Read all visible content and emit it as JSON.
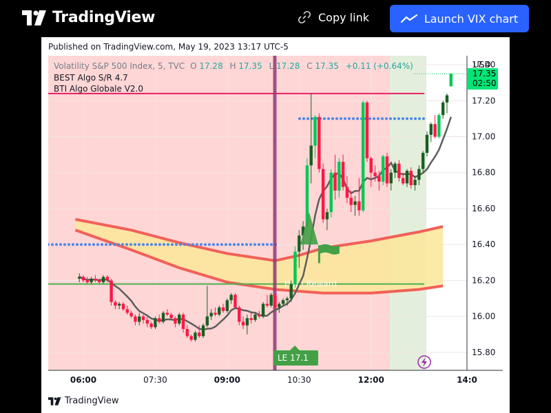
{
  "header": {
    "brand": "TradingView",
    "copy_link_label": "Copy link",
    "launch_label": "Launch VIX chart",
    "accent": "#2962ff"
  },
  "card": {
    "published": "Published on TradingView.com, May 19, 2023 13:17 UTC-5",
    "footer_brand": "TradingView"
  },
  "legend": {
    "symbol": "Volatility S&P 500 Index, 5, TVC",
    "o_label": "O",
    "o_value": "17.28",
    "h_label": "H",
    "h_value": "17.35",
    "l_label": "L",
    "l_value": "17.28",
    "c_label": "C",
    "c_value": "17.35",
    "change": "+0.11 (+0.64%)",
    "indicator_1": "BEST Algo S/R 4.7",
    "indicator_2": "BTI Algo Globale V2.0"
  },
  "price_axis": {
    "currency": "USD",
    "last_price": "17.35",
    "countdown": "02:50"
  },
  "markers": {
    "entry_label": "LE 17.1",
    "zone_label": "High Reward"
  },
  "colors": {
    "up": "#00c853",
    "down": "#ff1744",
    "up_dark": "#1b5e20",
    "bg_red": "#ffd6d6",
    "bg_green": "#e3efdc",
    "support": "#4caf50",
    "resistance": "#e91e63",
    "dots": "#4a86e8",
    "session_line": "#8e3a74",
    "ma": "#5d5d5d",
    "band": "#f16058",
    "band_fill": "#fbe69a"
  },
  "chart_data": {
    "type": "candlestick",
    "symbol": "Volatility S&P 500 Index",
    "interval": "5",
    "x_tick_labels": [
      "06:00",
      "07:30",
      "09:00",
      "10:30",
      "12:00",
      "14:0"
    ],
    "y_tick_labels": [
      "15.80",
      "16.00",
      "16.20",
      "16.40",
      "16.60",
      "16.80",
      "17.00",
      "17.20",
      "17.40"
    ],
    "ylim": [
      15.7,
      17.45
    ],
    "last_price": 17.35,
    "levels": {
      "resistance": 17.24,
      "support": 16.18,
      "dotted_lower": 16.4,
      "dotted_upper": 17.1
    },
    "candles": [
      {
        "o": 16.21,
        "h": 16.24,
        "l": 16.19,
        "c": 16.22
      },
      {
        "o": 16.22,
        "h": 16.23,
        "l": 16.19,
        "c": 16.2
      },
      {
        "o": 16.2,
        "h": 16.22,
        "l": 16.18,
        "c": 16.19
      },
      {
        "o": 16.19,
        "h": 16.22,
        "l": 16.18,
        "c": 16.21
      },
      {
        "o": 16.21,
        "h": 16.23,
        "l": 16.19,
        "c": 16.2
      },
      {
        "o": 16.2,
        "h": 16.21,
        "l": 16.18,
        "c": 16.19
      },
      {
        "o": 16.19,
        "h": 16.23,
        "l": 16.18,
        "c": 16.22
      },
      {
        "o": 16.22,
        "h": 16.23,
        "l": 16.19,
        "c": 16.2
      },
      {
        "o": 16.2,
        "h": 16.21,
        "l": 16.06,
        "c": 16.08
      },
      {
        "o": 16.08,
        "h": 16.09,
        "l": 16.04,
        "c": 16.06
      },
      {
        "o": 16.06,
        "h": 16.08,
        "l": 16.04,
        "c": 16.07
      },
      {
        "o": 16.07,
        "h": 16.08,
        "l": 16.03,
        "c": 16.04
      },
      {
        "o": 16.04,
        "h": 16.06,
        "l": 16.01,
        "c": 16.02
      },
      {
        "o": 16.02,
        "h": 16.03,
        "l": 15.99,
        "c": 16.0
      },
      {
        "o": 16.0,
        "h": 16.01,
        "l": 15.95,
        "c": 15.97
      },
      {
        "o": 15.97,
        "h": 16.02,
        "l": 15.95,
        "c": 16.0
      },
      {
        "o": 16.0,
        "h": 16.01,
        "l": 15.96,
        "c": 15.98
      },
      {
        "o": 15.98,
        "h": 16.0,
        "l": 15.94,
        "c": 15.96
      },
      {
        "o": 15.96,
        "h": 15.97,
        "l": 15.93,
        "c": 15.94
      },
      {
        "o": 15.94,
        "h": 16.0,
        "l": 15.93,
        "c": 15.99
      },
      {
        "o": 15.99,
        "h": 16.01,
        "l": 15.96,
        "c": 15.97
      },
      {
        "o": 15.97,
        "h": 16.03,
        "l": 15.96,
        "c": 16.02
      },
      {
        "o": 16.02,
        "h": 16.04,
        "l": 16.0,
        "c": 16.01
      },
      {
        "o": 16.01,
        "h": 16.02,
        "l": 15.98,
        "c": 15.99
      },
      {
        "o": 15.99,
        "h": 16.0,
        "l": 15.94,
        "c": 15.96
      },
      {
        "o": 15.96,
        "h": 16.02,
        "l": 15.95,
        "c": 16.01
      },
      {
        "o": 16.01,
        "h": 16.02,
        "l": 15.91,
        "c": 15.93
      },
      {
        "o": 15.93,
        "h": 15.95,
        "l": 15.88,
        "c": 15.89
      },
      {
        "o": 15.89,
        "h": 15.9,
        "l": 15.86,
        "c": 15.87
      },
      {
        "o": 15.87,
        "h": 15.92,
        "l": 15.86,
        "c": 15.91
      },
      {
        "o": 15.91,
        "h": 15.95,
        "l": 15.88,
        "c": 15.89
      },
      {
        "o": 15.89,
        "h": 15.96,
        "l": 15.88,
        "c": 15.95
      },
      {
        "o": 15.95,
        "h": 16.17,
        "l": 15.94,
        "c": 16.0
      },
      {
        "o": 16.0,
        "h": 16.04,
        "l": 15.98,
        "c": 16.02
      },
      {
        "o": 16.02,
        "h": 16.05,
        "l": 16.0,
        "c": 16.01
      },
      {
        "o": 16.01,
        "h": 16.06,
        "l": 16.0,
        "c": 16.05
      },
      {
        "o": 16.05,
        "h": 16.07,
        "l": 16.02,
        "c": 16.03
      },
      {
        "o": 16.03,
        "h": 16.1,
        "l": 16.02,
        "c": 16.09
      },
      {
        "o": 16.09,
        "h": 16.13,
        "l": 16.07,
        "c": 16.12
      },
      {
        "o": 16.12,
        "h": 16.13,
        "l": 16.04,
        "c": 16.05
      },
      {
        "o": 16.05,
        "h": 16.06,
        "l": 15.95,
        "c": 15.97
      },
      {
        "o": 15.97,
        "h": 16.0,
        "l": 15.93,
        "c": 15.95
      },
      {
        "o": 15.95,
        "h": 16.01,
        "l": 15.9,
        "c": 15.99
      },
      {
        "o": 15.99,
        "h": 16.02,
        "l": 15.96,
        "c": 15.98
      },
      {
        "o": 15.98,
        "h": 16.02,
        "l": 15.97,
        "c": 16.01
      },
      {
        "o": 16.01,
        "h": 16.03,
        "l": 15.99,
        "c": 16.0
      },
      {
        "o": 16.0,
        "h": 16.08,
        "l": 15.99,
        "c": 16.07
      },
      {
        "o": 16.07,
        "h": 16.12,
        "l": 16.05,
        "c": 16.06
      },
      {
        "o": 16.06,
        "h": 16.13,
        "l": 16.05,
        "c": 16.12
      },
      {
        "o": 16.12,
        "h": 16.13,
        "l": 16.03,
        "c": 16.05
      },
      {
        "o": 16.05,
        "h": 16.08,
        "l": 16.02,
        "c": 16.07
      },
      {
        "o": 16.07,
        "h": 16.1,
        "l": 16.06,
        "c": 16.09
      },
      {
        "o": 16.09,
        "h": 16.11,
        "l": 16.06,
        "c": 16.1
      },
      {
        "o": 16.1,
        "h": 16.2,
        "l": 16.08,
        "c": 16.18
      },
      {
        "o": 16.18,
        "h": 16.39,
        "l": 16.16,
        "c": 16.36
      },
      {
        "o": 16.36,
        "h": 16.48,
        "l": 16.27,
        "c": 16.45
      },
      {
        "o": 16.45,
        "h": 16.53,
        "l": 16.37,
        "c": 16.5
      },
      {
        "o": 16.5,
        "h": 16.88,
        "l": 16.45,
        "c": 16.84
      },
      {
        "o": 16.84,
        "h": 17.24,
        "l": 16.74,
        "c": 16.95
      },
      {
        "o": 16.95,
        "h": 17.12,
        "l": 16.88,
        "c": 17.11
      },
      {
        "o": 17.11,
        "h": 17.13,
        "l": 16.8,
        "c": 16.82
      },
      {
        "o": 16.82,
        "h": 16.85,
        "l": 16.52,
        "c": 16.54
      },
      {
        "o": 16.54,
        "h": 16.6,
        "l": 16.48,
        "c": 16.58
      },
      {
        "o": 16.58,
        "h": 16.82,
        "l": 16.55,
        "c": 16.8
      },
      {
        "o": 16.8,
        "h": 16.9,
        "l": 16.65,
        "c": 16.7
      },
      {
        "o": 16.7,
        "h": 16.88,
        "l": 16.66,
        "c": 16.86
      },
      {
        "o": 16.86,
        "h": 16.9,
        "l": 16.7,
        "c": 16.72
      },
      {
        "o": 16.72,
        "h": 16.78,
        "l": 16.63,
        "c": 16.66
      },
      {
        "o": 16.66,
        "h": 16.7,
        "l": 16.58,
        "c": 16.62
      },
      {
        "o": 16.62,
        "h": 16.67,
        "l": 16.56,
        "c": 16.64
      },
      {
        "o": 16.64,
        "h": 16.77,
        "l": 16.56,
        "c": 16.59
      },
      {
        "o": 16.59,
        "h": 17.2,
        "l": 16.58,
        "c": 17.19
      },
      {
        "o": 17.19,
        "h": 17.2,
        "l": 16.86,
        "c": 16.88
      },
      {
        "o": 16.88,
        "h": 16.89,
        "l": 16.72,
        "c": 16.8
      },
      {
        "o": 16.8,
        "h": 16.84,
        "l": 16.75,
        "c": 16.78
      },
      {
        "o": 16.78,
        "h": 16.81,
        "l": 16.7,
        "c": 16.75
      },
      {
        "o": 16.75,
        "h": 16.9,
        "l": 16.73,
        "c": 16.89
      },
      {
        "o": 16.89,
        "h": 16.91,
        "l": 16.72,
        "c": 16.74
      },
      {
        "o": 16.74,
        "h": 16.82,
        "l": 16.7,
        "c": 16.8
      },
      {
        "o": 16.8,
        "h": 16.86,
        "l": 16.77,
        "c": 16.85
      },
      {
        "o": 16.85,
        "h": 16.87,
        "l": 16.75,
        "c": 16.77
      },
      {
        "o": 16.77,
        "h": 16.8,
        "l": 16.73,
        "c": 16.74
      },
      {
        "o": 16.74,
        "h": 16.82,
        "l": 16.72,
        "c": 16.81
      },
      {
        "o": 16.81,
        "h": 16.83,
        "l": 16.71,
        "c": 16.73
      },
      {
        "o": 16.73,
        "h": 16.78,
        "l": 16.7,
        "c": 16.76
      },
      {
        "o": 16.76,
        "h": 16.84,
        "l": 16.73,
        "c": 16.82
      },
      {
        "o": 16.82,
        "h": 16.92,
        "l": 16.8,
        "c": 16.91
      },
      {
        "o": 16.91,
        "h": 17.03,
        "l": 16.89,
        "c": 17.01
      },
      {
        "o": 17.01,
        "h": 17.08,
        "l": 16.97,
        "c": 17.07
      },
      {
        "o": 17.07,
        "h": 17.12,
        "l": 16.99,
        "c": 17.0
      },
      {
        "o": 17.0,
        "h": 17.13,
        "l": 16.99,
        "c": 17.12
      },
      {
        "o": 17.12,
        "h": 17.2,
        "l": 17.1,
        "c": 17.19
      },
      {
        "o": 17.19,
        "h": 17.24,
        "l": 17.13,
        "c": 17.23
      },
      {
        "o": 17.28,
        "h": 17.35,
        "l": 17.28,
        "c": 17.35
      }
    ]
  }
}
